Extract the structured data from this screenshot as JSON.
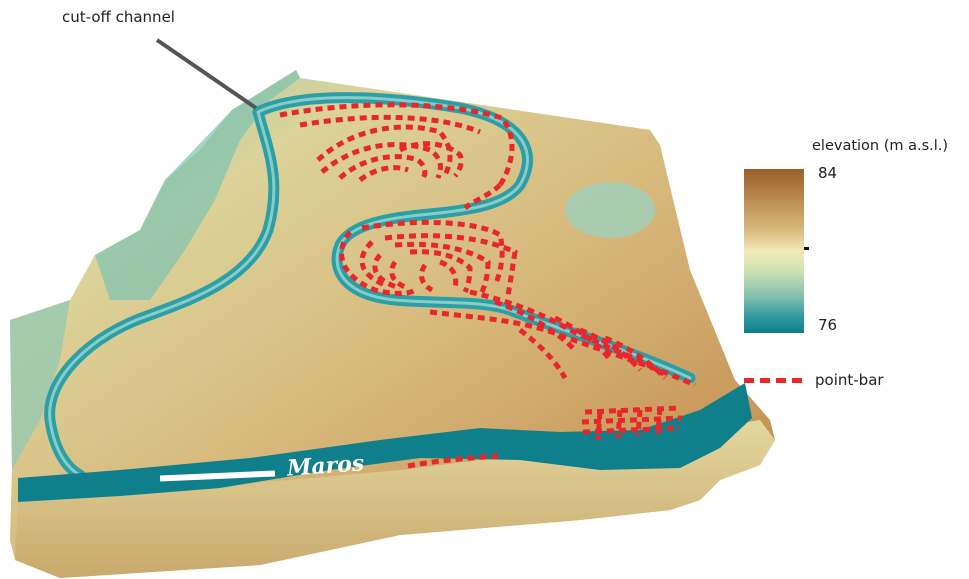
{
  "callout": {
    "label": "cut-off channel"
  },
  "map": {
    "river_name": "Maros"
  },
  "legend": {
    "title": "elevation (m a.s.l.)",
    "max": "84",
    "min": "76",
    "pointbar_label": "point-bar",
    "pointbar_color": "#e8262b",
    "color_high": "#9a5e2a",
    "color_mid": "#f3e9b8",
    "color_low": "#0d7f8c"
  }
}
